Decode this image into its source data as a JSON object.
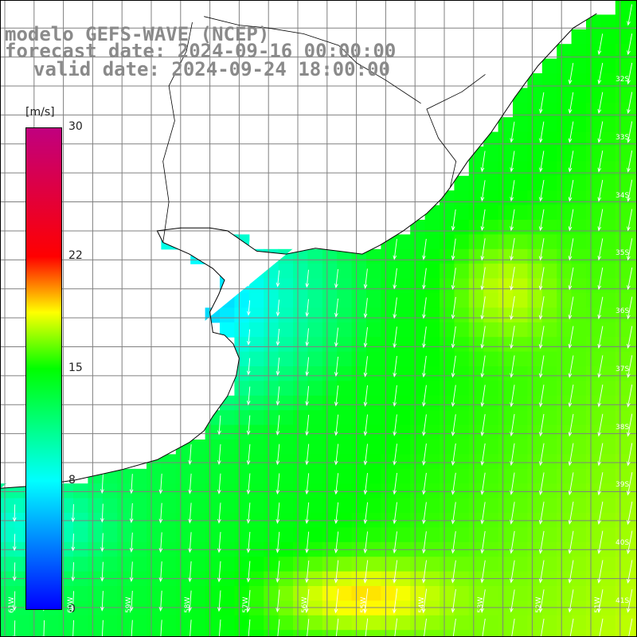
{
  "title": {
    "line1": "modelo GEFS-WAVE (NCEP)",
    "line2": "forecast date: 2024-09-16 00:00:00",
    "line3": "valid date: 2024-09-24 18:00:00"
  },
  "colorbar": {
    "unit": "[m/s]",
    "min": 0,
    "max": 30,
    "ticks": [
      "30",
      "22",
      "15",
      "8",
      "0"
    ],
    "tick_values": [
      30,
      22,
      15,
      8,
      0
    ],
    "stops": [
      "#0000ff",
      "#00ffff",
      "#00ff00",
      "#ffff00",
      "#ff0000",
      "#c0007f"
    ]
  },
  "map": {
    "variable": "wind speed",
    "lon_labels": [
      "61W",
      "60W",
      "59W",
      "58W",
      "57W",
      "56W",
      "55W",
      "54W",
      "53W",
      "52W",
      "51W",
      "50W"
    ],
    "lon_values": [
      -61,
      -60,
      -59,
      -58,
      -57,
      -56,
      -55,
      -54,
      -53,
      -52,
      -51,
      -50
    ],
    "lat_labels": [
      "32S",
      "33S",
      "34S",
      "35S",
      "36S",
      "37S",
      "38S",
      "39S",
      "40S",
      "41S"
    ],
    "lat_values": [
      -32,
      -33,
      -34,
      -35,
      -36,
      -37,
      -38,
      -39,
      -40,
      -41
    ],
    "lon_range": [
      -61.2,
      -49.8
    ],
    "lat_range": [
      -41.3,
      -30.8
    ],
    "land_color": "#ffffff",
    "grid_color": "#808080",
    "arrow_color": "#ffffff",
    "coast_color": "#000000"
  }
}
